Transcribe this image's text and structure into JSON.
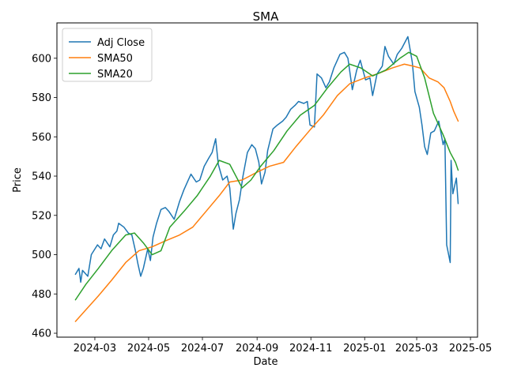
{
  "chart_data": {
    "type": "line",
    "title": "SMA",
    "xlabel": "Date",
    "ylabel": "Price",
    "xlim": [
      "2024-01-18",
      "2025-05-09"
    ],
    "ylim": [
      458,
      618
    ],
    "grid": false,
    "legend_position": "top-left",
    "x_ticks": [
      "2024-03",
      "2024-05",
      "2024-07",
      "2024-09",
      "2024-11",
      "2025-01",
      "2025-03",
      "2025-05"
    ],
    "y_ticks": [
      460,
      480,
      500,
      520,
      540,
      560,
      580,
      600
    ],
    "series": [
      {
        "name": "Adj Close",
        "color": "#1f77b4",
        "points": [
          [
            "2024-02-08",
            490
          ],
          [
            "2024-02-12",
            493
          ],
          [
            "2024-02-14",
            486
          ],
          [
            "2024-02-16",
            492
          ],
          [
            "2024-02-22",
            489
          ],
          [
            "2024-02-26",
            500
          ],
          [
            "2024-03-04",
            505
          ],
          [
            "2024-03-08",
            503
          ],
          [
            "2024-03-12",
            508
          ],
          [
            "2024-03-18",
            504
          ],
          [
            "2024-03-22",
            510
          ],
          [
            "2024-03-26",
            512
          ],
          [
            "2024-03-28",
            516
          ],
          [
            "2024-04-03",
            514
          ],
          [
            "2024-04-08",
            511
          ],
          [
            "2024-04-12",
            510
          ],
          [
            "2024-04-16",
            502
          ],
          [
            "2024-04-19",
            495
          ],
          [
            "2024-04-22",
            489
          ],
          [
            "2024-04-25",
            493
          ],
          [
            "2024-04-30",
            503
          ],
          [
            "2024-05-03",
            497
          ],
          [
            "2024-05-06",
            509
          ],
          [
            "2024-05-10",
            516
          ],
          [
            "2024-05-15",
            523
          ],
          [
            "2024-05-20",
            524
          ],
          [
            "2024-05-24",
            522
          ],
          [
            "2024-05-30",
            518
          ],
          [
            "2024-06-05",
            527
          ],
          [
            "2024-06-10",
            533
          ],
          [
            "2024-06-14",
            537
          ],
          [
            "2024-06-18",
            541
          ],
          [
            "2024-06-24",
            537
          ],
          [
            "2024-06-28",
            538
          ],
          [
            "2024-07-03",
            545
          ],
          [
            "2024-07-08",
            549
          ],
          [
            "2024-07-12",
            552
          ],
          [
            "2024-07-16",
            559
          ],
          [
            "2024-07-19",
            546
          ],
          [
            "2024-07-24",
            538
          ],
          [
            "2024-07-29",
            540
          ],
          [
            "2024-08-01",
            534
          ],
          [
            "2024-08-05",
            513
          ],
          [
            "2024-08-08",
            521
          ],
          [
            "2024-08-12",
            528
          ],
          [
            "2024-08-16",
            540
          ],
          [
            "2024-08-21",
            552
          ],
          [
            "2024-08-26",
            556
          ],
          [
            "2024-08-30",
            554
          ],
          [
            "2024-09-03",
            547
          ],
          [
            "2024-09-06",
            536
          ],
          [
            "2024-09-10",
            542
          ],
          [
            "2024-09-13",
            553
          ],
          [
            "2024-09-19",
            564
          ],
          [
            "2024-09-24",
            566
          ],
          [
            "2024-09-30",
            568
          ],
          [
            "2024-10-04",
            570
          ],
          [
            "2024-10-09",
            574
          ],
          [
            "2024-10-14",
            576
          ],
          [
            "2024-10-18",
            578
          ],
          [
            "2024-10-24",
            577
          ],
          [
            "2024-10-28",
            578
          ],
          [
            "2024-10-31",
            566
          ],
          [
            "2024-11-05",
            565
          ],
          [
            "2024-11-08",
            592
          ],
          [
            "2024-11-13",
            590
          ],
          [
            "2024-11-18",
            585
          ],
          [
            "2024-11-22",
            588
          ],
          [
            "2024-11-27",
            595
          ],
          [
            "2024-12-04",
            602
          ],
          [
            "2024-12-09",
            603
          ],
          [
            "2024-12-13",
            600
          ],
          [
            "2024-12-18",
            584
          ],
          [
            "2024-12-23",
            594
          ],
          [
            "2024-12-27",
            599
          ],
          [
            "2025-01-02",
            589
          ],
          [
            "2025-01-07",
            590
          ],
          [
            "2025-01-10",
            581
          ],
          [
            "2025-01-15",
            592
          ],
          [
            "2025-01-21",
            596
          ],
          [
            "2025-01-24",
            606
          ],
          [
            "2025-01-28",
            601
          ],
          [
            "2025-02-03",
            597
          ],
          [
            "2025-02-07",
            602
          ],
          [
            "2025-02-12",
            605
          ],
          [
            "2025-02-19",
            611
          ],
          [
            "2025-02-24",
            598
          ],
          [
            "2025-02-27",
            583
          ],
          [
            "2025-03-04",
            575
          ],
          [
            "2025-03-07",
            566
          ],
          [
            "2025-03-10",
            555
          ],
          [
            "2025-03-13",
            551
          ],
          [
            "2025-03-17",
            562
          ],
          [
            "2025-03-21",
            563
          ],
          [
            "2025-03-26",
            568
          ],
          [
            "2025-03-31",
            556
          ],
          [
            "2025-04-02",
            559
          ],
          [
            "2025-04-04",
            505
          ],
          [
            "2025-04-08",
            496
          ],
          [
            "2025-04-09",
            548
          ],
          [
            "2025-04-11",
            531
          ],
          [
            "2025-04-15",
            539
          ],
          [
            "2025-04-17",
            526
          ]
        ]
      },
      {
        "name": "SMA50",
        "color": "#ff7f0e",
        "points": [
          [
            "2024-02-08",
            466
          ],
          [
            "2024-02-20",
            472
          ],
          [
            "2024-03-05",
            479
          ],
          [
            "2024-03-20",
            487
          ],
          [
            "2024-04-05",
            496
          ],
          [
            "2024-04-20",
            502
          ],
          [
            "2024-05-05",
            504
          ],
          [
            "2024-05-20",
            507
          ],
          [
            "2024-06-05",
            510
          ],
          [
            "2024-06-20",
            514
          ],
          [
            "2024-07-05",
            522
          ],
          [
            "2024-07-20",
            530
          ],
          [
            "2024-08-01",
            537
          ],
          [
            "2024-08-15",
            538
          ],
          [
            "2024-09-01",
            542
          ],
          [
            "2024-09-15",
            545
          ],
          [
            "2024-10-01",
            547
          ],
          [
            "2024-10-15",
            555
          ],
          [
            "2024-11-01",
            564
          ],
          [
            "2024-11-15",
            571
          ],
          [
            "2024-12-01",
            581
          ],
          [
            "2024-12-15",
            587
          ],
          [
            "2025-01-01",
            590
          ],
          [
            "2025-01-15",
            592
          ],
          [
            "2025-02-01",
            595
          ],
          [
            "2025-02-15",
            597
          ],
          [
            "2025-02-25",
            596
          ],
          [
            "2025-03-05",
            595
          ],
          [
            "2025-03-15",
            590
          ],
          [
            "2025-03-25",
            588
          ],
          [
            "2025-04-01",
            585
          ],
          [
            "2025-04-08",
            578
          ],
          [
            "2025-04-12",
            573
          ],
          [
            "2025-04-17",
            568
          ]
        ]
      },
      {
        "name": "SMA20",
        "color": "#2ca02c",
        "points": [
          [
            "2024-02-08",
            477
          ],
          [
            "2024-02-20",
            485
          ],
          [
            "2024-03-05",
            493
          ],
          [
            "2024-03-20",
            502
          ],
          [
            "2024-04-05",
            510
          ],
          [
            "2024-04-15",
            511
          ],
          [
            "2024-04-25",
            506
          ],
          [
            "2024-05-05",
            500
          ],
          [
            "2024-05-15",
            502
          ],
          [
            "2024-05-25",
            514
          ],
          [
            "2024-06-10",
            522
          ],
          [
            "2024-06-25",
            530
          ],
          [
            "2024-07-10",
            540
          ],
          [
            "2024-07-20",
            548
          ],
          [
            "2024-08-01",
            546
          ],
          [
            "2024-08-15",
            534
          ],
          [
            "2024-08-25",
            538
          ],
          [
            "2024-09-05",
            545
          ],
          [
            "2024-09-20",
            553
          ],
          [
            "2024-10-05",
            563
          ],
          [
            "2024-10-20",
            571
          ],
          [
            "2024-11-05",
            576
          ],
          [
            "2024-11-20",
            585
          ],
          [
            "2024-12-05",
            593
          ],
          [
            "2024-12-15",
            597
          ],
          [
            "2024-12-28",
            595
          ],
          [
            "2025-01-10",
            591
          ],
          [
            "2025-01-25",
            594
          ],
          [
            "2025-02-10",
            600
          ],
          [
            "2025-02-20",
            603
          ],
          [
            "2025-03-01",
            601
          ],
          [
            "2025-03-10",
            590
          ],
          [
            "2025-03-20",
            572
          ],
          [
            "2025-03-31",
            561
          ],
          [
            "2025-04-08",
            552
          ],
          [
            "2025-04-14",
            547
          ],
          [
            "2025-04-17",
            543
          ]
        ]
      }
    ]
  }
}
